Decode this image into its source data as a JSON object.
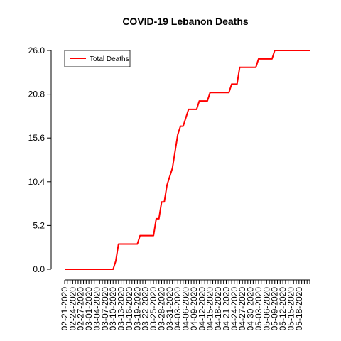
{
  "chart_data": {
    "type": "line",
    "title": "COVID-19 Lebanon Deaths",
    "xlabel": "",
    "ylabel": "",
    "ylim": [
      0,
      26
    ],
    "y_ticks": [
      "0.0",
      "5.2",
      "10.4",
      "15.6",
      "20.8",
      "26.0"
    ],
    "x_tick_labels": [
      "02-21-2020",
      "02-24-2020",
      "02-27-2020",
      "03-01-2020",
      "03-04-2020",
      "03-07-2020",
      "03-10-2020",
      "03-13-2020",
      "03-16-2020",
      "03-19-2020",
      "03-22-2020",
      "03-25-2020",
      "03-28-2020",
      "03-31-2020",
      "04-03-2020",
      "04-06-2020",
      "04-09-2020",
      "04-12-2020",
      "04-15-2020",
      "04-18-2020",
      "04-21-2020",
      "04-24-2020",
      "04-27-2020",
      "04-30-2020",
      "05-03-2020",
      "05-06-2020",
      "05-09-2020",
      "05-12-2020",
      "05-15-2020",
      "05-18-2020"
    ],
    "x": [
      "02-21-2020",
      "02-22-2020",
      "02-23-2020",
      "02-24-2020",
      "02-25-2020",
      "02-26-2020",
      "02-27-2020",
      "02-28-2020",
      "02-29-2020",
      "03-01-2020",
      "03-02-2020",
      "03-03-2020",
      "03-04-2020",
      "03-05-2020",
      "03-06-2020",
      "03-07-2020",
      "03-08-2020",
      "03-09-2020",
      "03-10-2020",
      "03-11-2020",
      "03-12-2020",
      "03-13-2020",
      "03-14-2020",
      "03-15-2020",
      "03-16-2020",
      "03-17-2020",
      "03-18-2020",
      "03-19-2020",
      "03-20-2020",
      "03-21-2020",
      "03-22-2020",
      "03-23-2020",
      "03-24-2020",
      "03-25-2020",
      "03-26-2020",
      "03-27-2020",
      "03-28-2020",
      "03-29-2020",
      "03-30-2020",
      "03-31-2020",
      "04-01-2020",
      "04-02-2020",
      "04-03-2020",
      "04-04-2020",
      "04-05-2020",
      "04-06-2020",
      "04-07-2020",
      "04-08-2020",
      "04-09-2020",
      "04-10-2020",
      "04-11-2020",
      "04-12-2020",
      "04-13-2020",
      "04-14-2020",
      "04-15-2020",
      "04-16-2020",
      "04-17-2020",
      "04-18-2020",
      "04-19-2020",
      "04-20-2020",
      "04-21-2020",
      "04-22-2020",
      "04-23-2020",
      "04-24-2020",
      "04-25-2020",
      "04-26-2020",
      "04-27-2020",
      "04-28-2020",
      "04-29-2020",
      "04-30-2020",
      "05-01-2020",
      "05-02-2020",
      "05-03-2020",
      "05-04-2020",
      "05-05-2020",
      "05-06-2020",
      "05-07-2020",
      "05-08-2020",
      "05-09-2020",
      "05-10-2020",
      "05-11-2020",
      "05-12-2020",
      "05-13-2020",
      "05-14-2020",
      "05-15-2020",
      "05-16-2020",
      "05-17-2020",
      "05-18-2020",
      "05-19-2020",
      "05-20-2020",
      "05-21-2020",
      "05-22-2020"
    ],
    "series": [
      {
        "name": "Total Deaths",
        "color": "#ff0000",
        "values": [
          0,
          0,
          0,
          0,
          0,
          0,
          0,
          0,
          0,
          0,
          0,
          0,
          0,
          0,
          0,
          0,
          0,
          0,
          0,
          1,
          3,
          3,
          3,
          3,
          3,
          3,
          3,
          3,
          4,
          4,
          4,
          4,
          4,
          4,
          6,
          6,
          8,
          8,
          10,
          11,
          12,
          14,
          16,
          17,
          17,
          18,
          19,
          19,
          19,
          19,
          20,
          20,
          20,
          20,
          21,
          21,
          21,
          21,
          21,
          21,
          21,
          21,
          22,
          22,
          22,
          24,
          24,
          24,
          24,
          24,
          24,
          24,
          25,
          25,
          25,
          25,
          25,
          25,
          26,
          26,
          26,
          26,
          26,
          26,
          26,
          26,
          26,
          26,
          26,
          26,
          26,
          26
        ]
      }
    ],
    "legend": {
      "position": "top-left",
      "entries": [
        "Total Deaths"
      ]
    },
    "grid": false
  }
}
